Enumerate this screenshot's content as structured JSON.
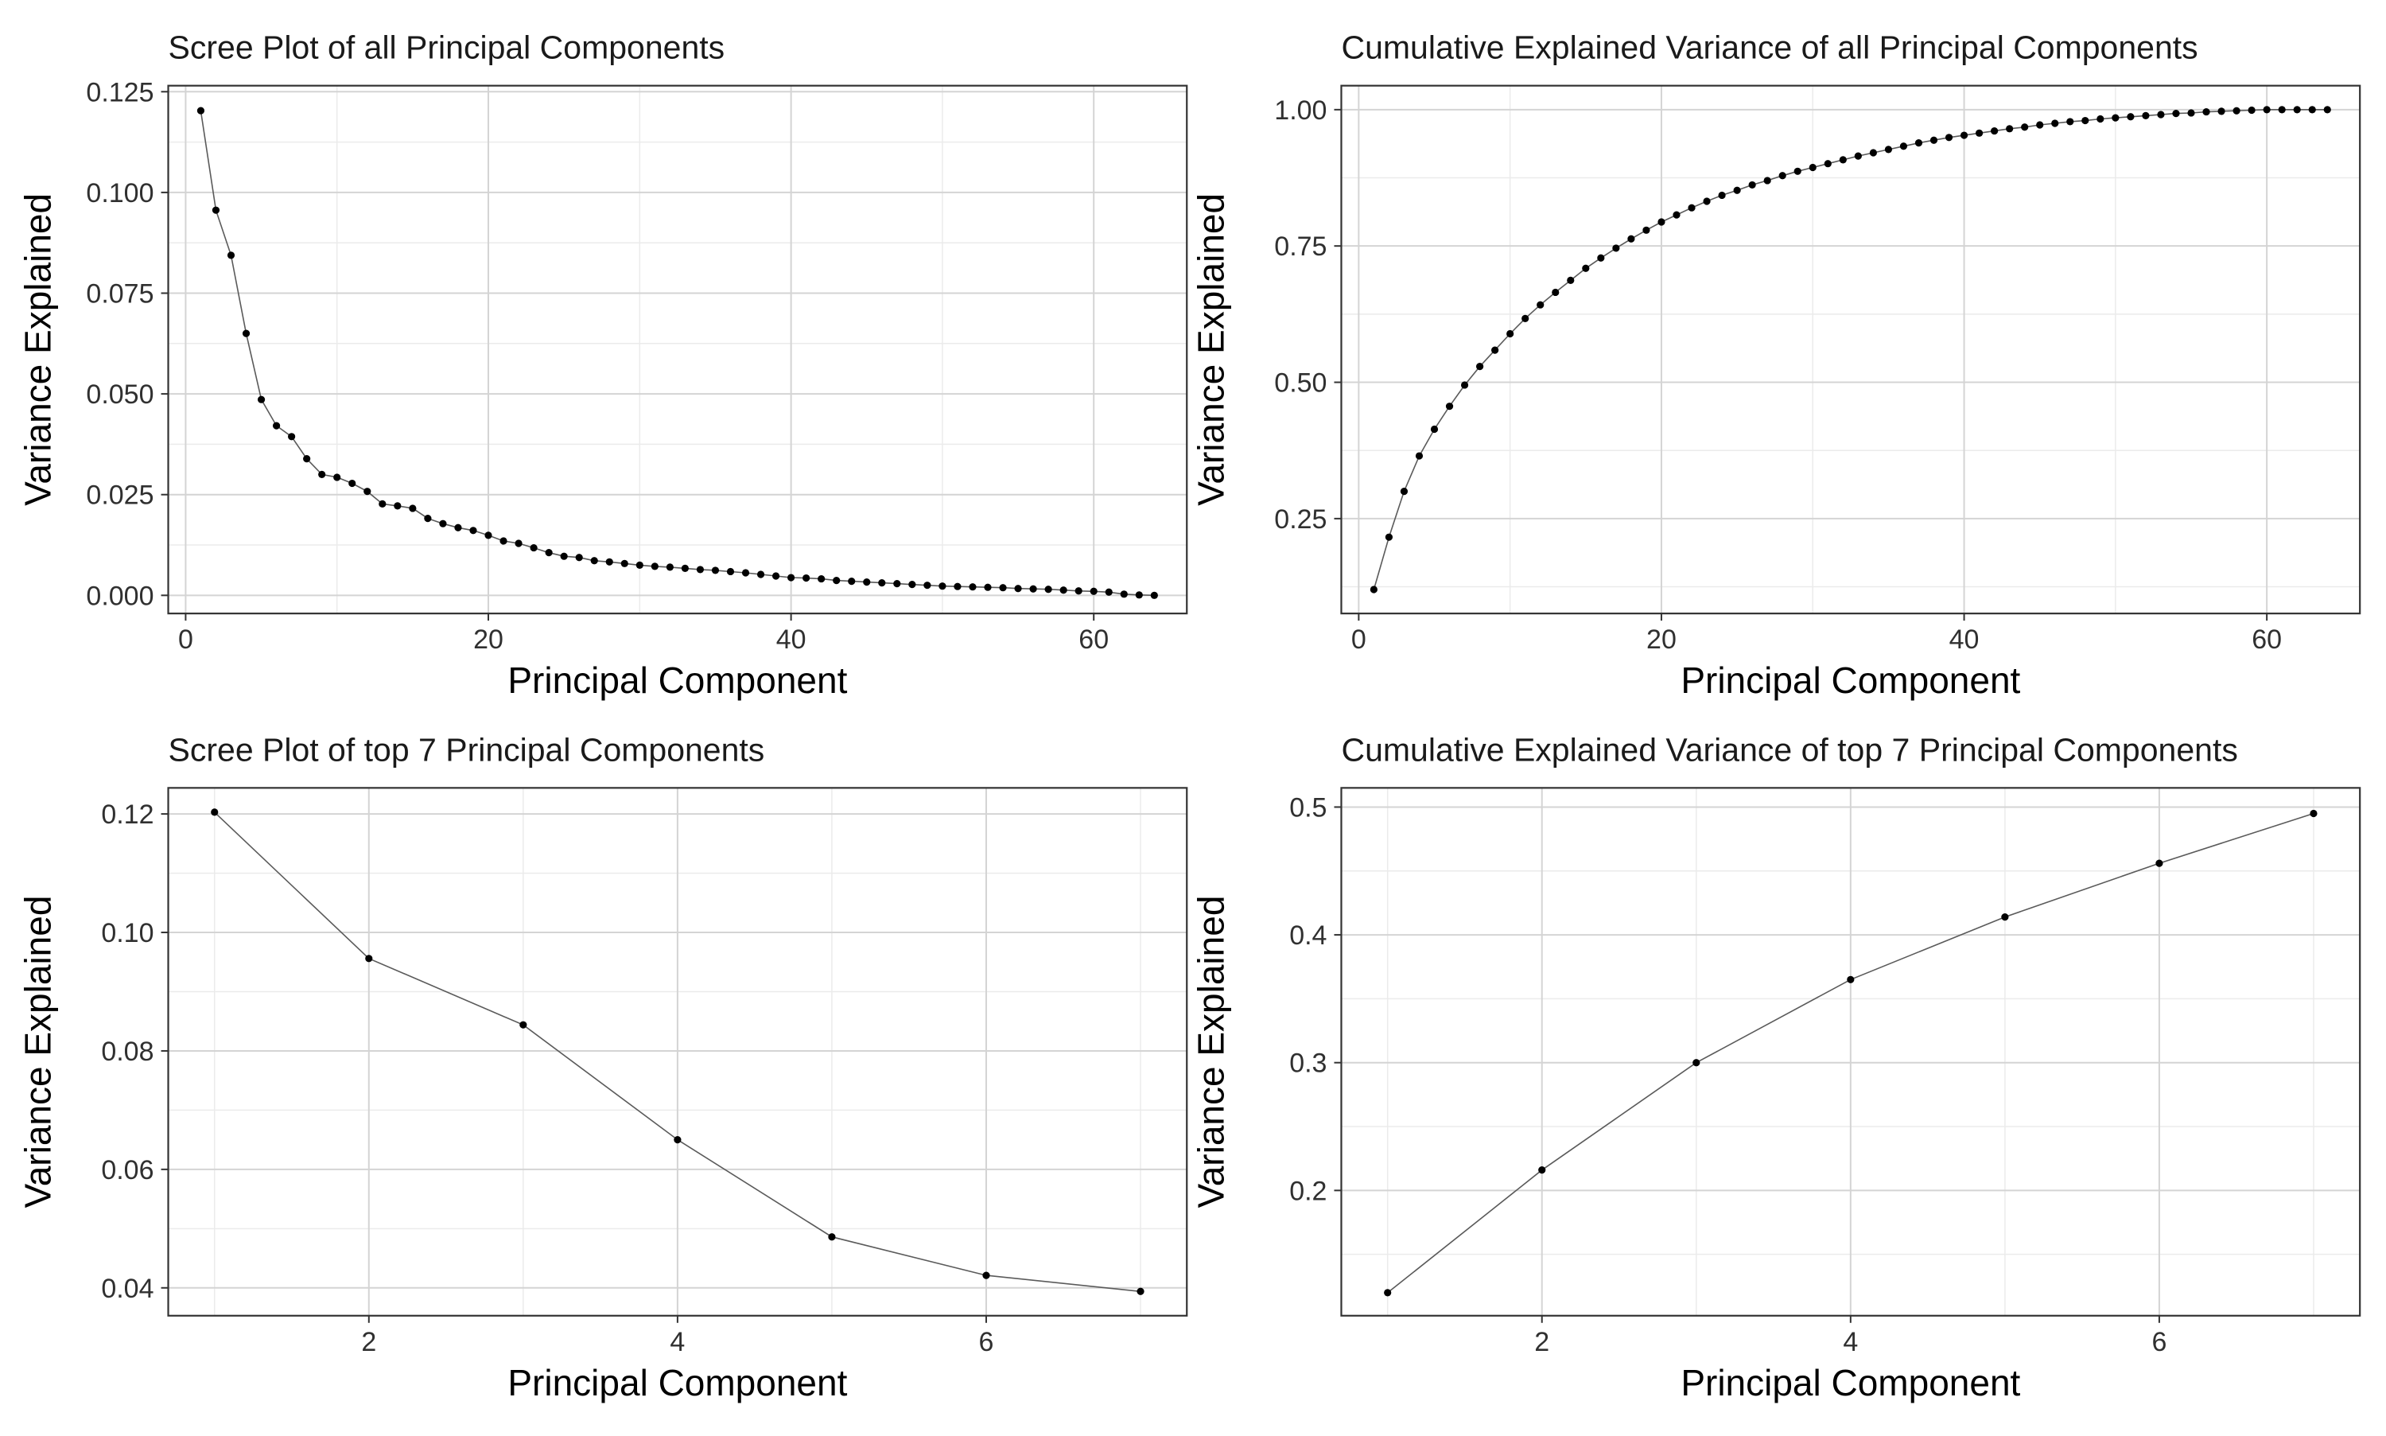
{
  "chart_data": [
    {
      "type": "line",
      "title": "Scree Plot of all Principal Components",
      "xlabel": "Principal Component",
      "ylabel": "Variance Explained",
      "xlim": [
        -1.15,
        66.15
      ],
      "ylim": [
        -0.0045,
        0.1265
      ],
      "xticks": [
        0,
        20,
        40,
        60
      ],
      "yticks": [
        0.0,
        0.025,
        0.05,
        0.075,
        0.1,
        0.125
      ],
      "ytick_labels": [
        "0.000",
        "0.025",
        "0.050",
        "0.075",
        "0.100",
        "0.125"
      ],
      "grid": true,
      "series": [
        {
          "x": [
            1,
            2,
            3,
            4,
            5,
            6,
            7,
            8,
            9,
            10,
            11,
            12,
            13,
            14,
            15,
            16,
            17,
            18,
            19,
            20,
            21,
            22,
            23,
            24,
            25,
            26,
            27,
            28,
            29,
            30,
            31,
            32,
            33,
            34,
            35,
            36,
            37,
            38,
            39,
            40,
            41,
            42,
            43,
            44,
            45,
            46,
            47,
            48,
            49,
            50,
            51,
            52,
            53,
            54,
            55,
            56,
            57,
            58,
            59,
            60,
            61,
            62,
            63,
            64
          ],
          "values": [
            0.1203,
            0.0956,
            0.0844,
            0.065,
            0.0486,
            0.0421,
            0.0394,
            0.0339,
            0.03,
            0.0293,
            0.0278,
            0.0258,
            0.0227,
            0.0222,
            0.0216,
            0.0191,
            0.0178,
            0.0168,
            0.0161,
            0.0149,
            0.0135,
            0.0129,
            0.0118,
            0.0106,
            0.0097,
            0.0094,
            0.0086,
            0.0083,
            0.0079,
            0.0075,
            0.0072,
            0.007,
            0.0067,
            0.0064,
            0.0062,
            0.0059,
            0.0056,
            0.0052,
            0.0048,
            0.0044,
            0.0043,
            0.0041,
            0.0037,
            0.0035,
            0.0033,
            0.0031,
            0.0029,
            0.0027,
            0.0025,
            0.0023,
            0.0022,
            0.0021,
            0.002,
            0.0019,
            0.0017,
            0.0016,
            0.0015,
            0.0013,
            0.0011,
            0.001,
            0.0008,
            0.0003,
            0.0001,
            0.0
          ]
        }
      ]
    },
    {
      "type": "line",
      "title": "Cumulative Explained Variance of all Principal Components",
      "xlabel": "Principal Component",
      "ylabel": "Variance Explained",
      "xlim": [
        -1.15,
        66.15
      ],
      "ylim": [
        0.076,
        1.044
      ],
      "xticks": [
        0,
        20,
        40,
        60
      ],
      "yticks": [
        0.25,
        0.5,
        0.75,
        1.0
      ],
      "ytick_labels": [
        "0.25",
        "0.50",
        "0.75",
        "1.00"
      ],
      "grid": true,
      "series": [
        {
          "x": [
            1,
            2,
            3,
            4,
            5,
            6,
            7,
            8,
            9,
            10,
            11,
            12,
            13,
            14,
            15,
            16,
            17,
            18,
            19,
            20,
            21,
            22,
            23,
            24,
            25,
            26,
            27,
            28,
            29,
            30,
            31,
            32,
            33,
            34,
            35,
            36,
            37,
            38,
            39,
            40,
            41,
            42,
            43,
            44,
            45,
            46,
            47,
            48,
            49,
            50,
            51,
            52,
            53,
            54,
            55,
            56,
            57,
            58,
            59,
            60,
            61,
            62,
            63,
            64
          ],
          "values": [
            0.12,
            0.216,
            0.3,
            0.365,
            0.414,
            0.456,
            0.495,
            0.529,
            0.559,
            0.589,
            0.617,
            0.642,
            0.665,
            0.687,
            0.709,
            0.728,
            0.746,
            0.763,
            0.779,
            0.794,
            0.807,
            0.82,
            0.832,
            0.843,
            0.852,
            0.862,
            0.87,
            0.879,
            0.887,
            0.894,
            0.901,
            0.908,
            0.915,
            0.921,
            0.927,
            0.933,
            0.939,
            0.944,
            0.949,
            0.953,
            0.957,
            0.961,
            0.965,
            0.968,
            0.972,
            0.975,
            0.978,
            0.98,
            0.983,
            0.985,
            0.987,
            0.989,
            0.991,
            0.993,
            0.994,
            0.996,
            0.997,
            0.998,
            0.999,
            1.0,
            1.0,
            1.0,
            1.0,
            1.0
          ]
        }
      ]
    },
    {
      "type": "line",
      "title": "Scree Plot of top 7 Principal Components",
      "xlabel": "Principal Component",
      "ylabel": "Variance Explained",
      "xlim": [
        0.7,
        7.3
      ],
      "ylim": [
        0.0353,
        0.1244
      ],
      "xticks": [
        2,
        4,
        6
      ],
      "yticks": [
        0.04,
        0.06,
        0.08,
        0.1,
        0.12
      ],
      "ytick_labels": [
        "0.04",
        "0.06",
        "0.08",
        "0.10",
        "0.12"
      ],
      "grid": true,
      "series": [
        {
          "x": [
            1,
            2,
            3,
            4,
            5,
            6,
            7
          ],
          "values": [
            0.1203,
            0.0956,
            0.0844,
            0.065,
            0.0486,
            0.0421,
            0.0394
          ]
        }
      ]
    },
    {
      "type": "line",
      "title": "Cumulative Explained Variance of top 7 Principal Components",
      "xlabel": "Principal Component",
      "ylabel": "Variance Explained",
      "xlim": [
        0.7,
        7.3
      ],
      "ylim": [
        0.102,
        0.515
      ],
      "xticks": [
        2,
        4,
        6
      ],
      "yticks": [
        0.2,
        0.3,
        0.4,
        0.5
      ],
      "ytick_labels": [
        "0.2",
        "0.3",
        "0.4",
        "0.5"
      ],
      "grid": true,
      "series": [
        {
          "x": [
            1,
            2,
            3,
            4,
            5,
            6,
            7
          ],
          "values": [
            0.12,
            0.216,
            0.3,
            0.365,
            0.414,
            0.456,
            0.495
          ]
        }
      ]
    }
  ]
}
